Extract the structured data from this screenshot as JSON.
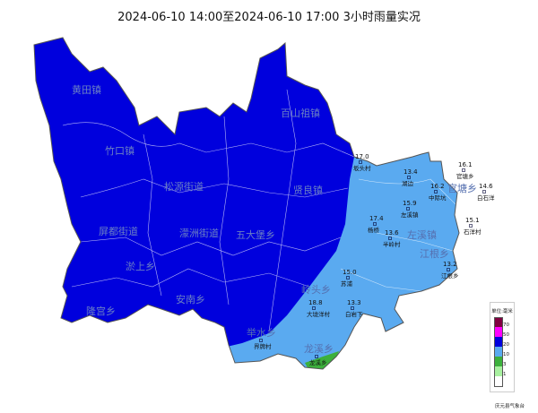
{
  "title": "2024-06-10 14:00至2024-06-10 17:00 3小时雨量实况",
  "colors": {
    "heavy": "#0000dd",
    "moderate": "#5aaaf0",
    "light": "#3cb03c",
    "border": "#ffffff"
  },
  "towns_dark": [
    {
      "name": "黄田镇"
    },
    {
      "name": "百山祖镇"
    },
    {
      "name": "竹口镇"
    },
    {
      "name": "松源街道"
    },
    {
      "name": "贤良镇"
    },
    {
      "name": "屏都街道"
    },
    {
      "name": "濛洲街道"
    },
    {
      "name": "五大堡乡"
    },
    {
      "name": "淤上乡"
    },
    {
      "name": "安南乡"
    },
    {
      "name": "隆宫乡"
    }
  ],
  "towns_light": [
    {
      "name": "左溪镇"
    },
    {
      "name": "官塘乡"
    },
    {
      "name": "江根乡"
    },
    {
      "name": "岭头乡"
    },
    {
      "name": "举水乡"
    },
    {
      "name": "龙溪乡"
    }
  ],
  "stations": [
    {
      "value": "17.0",
      "name": "坂头村"
    },
    {
      "value": "13.4",
      "name": "湖边"
    },
    {
      "value": "16.1",
      "name": "官塘乡"
    },
    {
      "value": "16.2",
      "name": "中际坑"
    },
    {
      "value": "14.6",
      "name": "白石洋"
    },
    {
      "value": "15.9",
      "name": "左溪镇"
    },
    {
      "value": "17.4",
      "name": "杨桥"
    },
    {
      "value": "13.6",
      "name": "半岭村"
    },
    {
      "value": "15.1",
      "name": "石洋村"
    },
    {
      "value": "13.2",
      "name": "江根乡"
    },
    {
      "value": "15.0",
      "name": "苏浦"
    },
    {
      "value": "13.3",
      "name": "白岩下"
    },
    {
      "value": "18.8",
      "name": "大垅洋村"
    },
    {
      "value": "",
      "name": "界牌村"
    },
    {
      "value": "",
      "name": "龙溪乡"
    }
  ],
  "legend": {
    "title": "单位:毫米",
    "items": [
      {
        "label": "70",
        "color": "#800040"
      },
      {
        "label": "50",
        "color": "#ff00ff"
      },
      {
        "label": "20",
        "color": "#0000dd"
      },
      {
        "label": "10",
        "color": "#5aaaf0"
      },
      {
        "label": "3",
        "color": "#3cb03c"
      },
      {
        "label": "1",
        "color": "#a8f0a0"
      },
      {
        "label": "",
        "color": "#ffffff"
      }
    ]
  },
  "footer": "庆元县气象台"
}
